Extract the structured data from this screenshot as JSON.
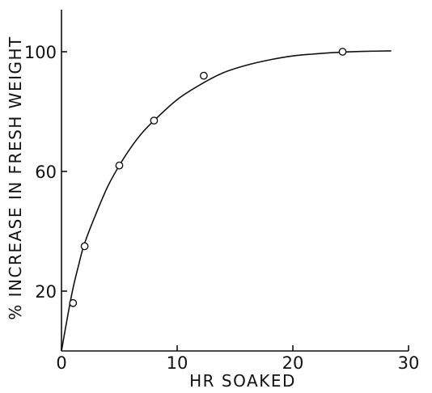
{
  "chart_data": {
    "type": "scatter",
    "title": "",
    "xlabel": "HR SOAKED",
    "ylabel": "% INCREASE IN FRESH WEIGHT",
    "xlim": [
      0,
      30
    ],
    "ylim": [
      0,
      112
    ],
    "x_ticks": [
      0,
      10,
      20,
      30
    ],
    "x_tick_labels": [
      "0",
      "10",
      "20",
      "30"
    ],
    "y_ticks": [
      20,
      60,
      100
    ],
    "y_tick_labels": [
      "20",
      "60",
      "100"
    ],
    "grid": false,
    "legend": "none",
    "series": [
      {
        "kind": "points",
        "marker": "open-circle",
        "x": [
          1,
          2,
          5,
          8,
          12.3,
          24.3
        ],
        "y": [
          16,
          35,
          62,
          77,
          92,
          100
        ]
      },
      {
        "kind": "fitted-curve",
        "x": [
          0,
          0.5,
          1,
          1.5,
          2,
          3,
          4,
          5,
          6,
          7,
          8,
          10,
          12,
          14,
          16,
          18,
          20,
          22,
          24,
          26,
          28.5
        ],
        "y": [
          0,
          11,
          21,
          29,
          36,
          46,
          55,
          62,
          68,
          73,
          77,
          84,
          89,
          93,
          95.5,
          97.3,
          98.6,
          99.3,
          99.8,
          100.1,
          100.3
        ]
      }
    ]
  }
}
